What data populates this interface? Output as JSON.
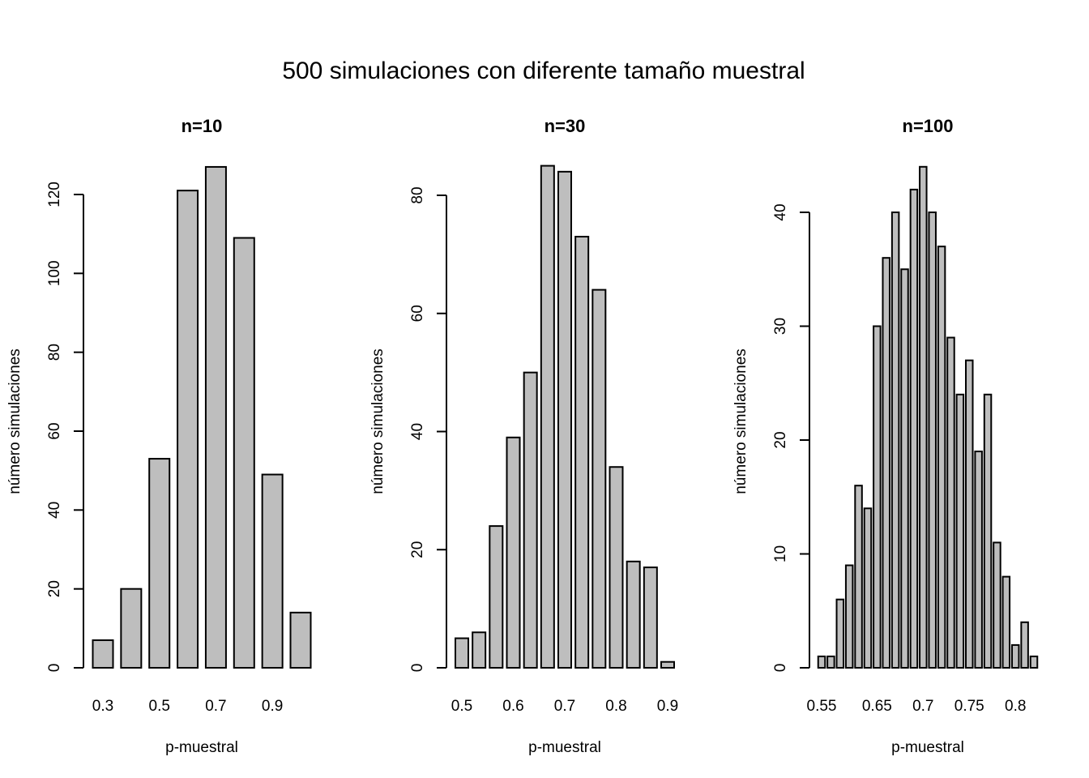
{
  "chart_data": {
    "title": "500 simulaciones con diferente tamaño muestral",
    "panels": [
      {
        "type": "bar",
        "title": "n=10",
        "xlabel": "p-muestral",
        "ylabel": "número simulaciones",
        "ylim": [
          0,
          120
        ],
        "yticks": [
          0,
          20,
          40,
          60,
          80,
          100,
          120
        ],
        "values": [
          7,
          20,
          53,
          121,
          127,
          109,
          49,
          14
        ],
        "x_tick_labels": [
          {
            "bar_index": 0,
            "label": "0.3"
          },
          {
            "bar_index": 2,
            "label": "0.5"
          },
          {
            "bar_index": 4,
            "label": "0.7"
          },
          {
            "bar_index": 6,
            "label": "0.9"
          }
        ]
      },
      {
        "type": "bar",
        "title": "n=30",
        "xlabel": "p-muestral",
        "ylabel": "número simulaciones",
        "ylim": [
          0,
          80
        ],
        "yticks": [
          0,
          20,
          40,
          60,
          80
        ],
        "values": [
          5,
          6,
          24,
          39,
          50,
          85,
          84,
          73,
          64,
          34,
          18,
          17,
          1
        ],
        "x_tick_labels": [
          {
            "bar_index": 0,
            "label": "0.5"
          },
          {
            "bar_index": 3,
            "label": "0.6"
          },
          {
            "bar_index": 6,
            "label": "0.7"
          },
          {
            "bar_index": 9,
            "label": "0.8"
          },
          {
            "bar_index": 12,
            "label": "0.9"
          }
        ]
      },
      {
        "type": "bar",
        "title": "n=100",
        "xlabel": "p-muestral",
        "ylabel": "número simulaciones",
        "ylim": [
          0,
          40
        ],
        "yticks": [
          0,
          10,
          20,
          30,
          40
        ],
        "values": [
          1,
          1,
          6,
          9,
          16,
          14,
          30,
          36,
          40,
          35,
          42,
          44,
          40,
          37,
          29,
          24,
          27,
          19,
          24,
          11,
          8,
          2,
          4,
          1
        ],
        "x_tick_labels": [
          {
            "bar_index": 0,
            "label": "0.55"
          },
          {
            "bar_index": 6,
            "label": "0.65"
          },
          {
            "bar_index": 11,
            "label": "0.7"
          },
          {
            "bar_index": 16,
            "label": "0.75"
          },
          {
            "bar_index": 21,
            "label": "0.8"
          }
        ]
      }
    ],
    "bar_fill": "#bebebe",
    "bar_stroke": "#000000",
    "grid": false
  }
}
